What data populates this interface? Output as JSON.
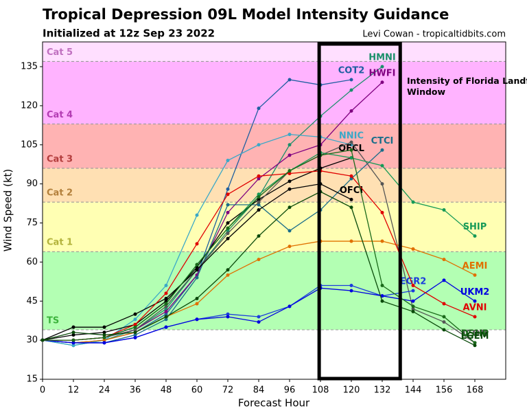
{
  "chart_data": {
    "type": "line",
    "title": "Tropical Depression 09L Model Intensity Guidance",
    "subtitle": "Initialized at 12z Sep 23 2022",
    "credit": "Levi Cowan - tropicaltidbits.com",
    "x_label": "Forecast Hour",
    "y_label": "Wind Speed (kt)",
    "annotation": "Intensity of Florida Landfall Window",
    "window": [
      107.5,
      139
    ],
    "xlim": [
      0,
      180
    ],
    "ylim": [
      15,
      144.5
    ],
    "xticks": [
      0,
      12,
      24,
      36,
      48,
      60,
      72,
      84,
      96,
      108,
      120,
      132,
      144,
      156,
      168
    ],
    "yticks": [
      15,
      30,
      45,
      60,
      75,
      90,
      105,
      120,
      135
    ],
    "bands": [
      {
        "name": "TS",
        "from": 34,
        "to": 64,
        "color": "#b3ffb3",
        "label_color": "#3cb33c"
      },
      {
        "name": "Cat 1",
        "from": 64,
        "to": 83,
        "color": "#ffffb3",
        "label_color": "#b3b33c"
      },
      {
        "name": "Cat 2",
        "from": 83,
        "to": 96,
        "color": "#ffe0b3",
        "label_color": "#b3803c"
      },
      {
        "name": "Cat 3",
        "from": 96,
        "to": 113,
        "color": "#ffb3b3",
        "label_color": "#b33c3c"
      },
      {
        "name": "Cat 4",
        "from": 113,
        "to": 137,
        "color": "#ffb3ff",
        "label_color": "#b33cb3"
      },
      {
        "name": "Cat 5",
        "from": 137,
        "to": 144.5,
        "color": "#ffdfff",
        "label_color": "#c070c0"
      }
    ],
    "x": [
      0,
      12,
      24,
      36,
      48,
      60,
      72,
      84,
      96,
      108,
      120,
      132,
      144,
      156,
      168
    ],
    "series": [
      {
        "name": "HMNI",
        "color": "#1a8f6a",
        "values": [
          30,
          28,
          30,
          34,
          42,
          57,
          72,
          85,
          105,
          116,
          126,
          135,
          null,
          null,
          null
        ]
      },
      {
        "name": "COT2",
        "color": "#1f5fa0",
        "values": [
          30,
          29,
          30,
          33,
          40,
          55,
          88,
          119,
          130,
          128,
          130,
          null,
          null,
          null,
          null
        ]
      },
      {
        "name": "HWFI",
        "color": "#800080",
        "values": [
          30,
          30,
          31,
          34,
          41,
          55,
          79,
          92,
          101,
          105,
          118,
          129,
          null,
          null,
          null
        ]
      },
      {
        "name": "NNIC",
        "color": "#3aa8c8",
        "values": [
          30,
          28,
          30,
          38,
          51,
          78,
          99,
          105,
          109,
          108,
          105,
          null,
          null,
          null,
          null
        ]
      },
      {
        "name": "OFCL",
        "color": "#000000",
        "values": [
          30,
          32,
          33,
          36,
          45,
          58,
          75,
          84,
          91,
          96,
          100,
          null,
          null,
          null,
          null
        ]
      },
      {
        "name": "CTCI",
        "color": "#1a6e8a",
        "values": [
          30,
          29,
          29,
          32,
          38,
          54,
          82,
          82,
          72,
          80,
          92,
          103,
          null,
          null,
          null
        ]
      },
      {
        "name": "ICON",
        "color": "#555555",
        "values": [
          30,
          30,
          31,
          34,
          43,
          57,
          71,
          83,
          95,
          101,
          106,
          90,
          42,
          37,
          29
        ]
      },
      {
        "name": "OFCI",
        "color": "#000000",
        "values": [
          30,
          35,
          35,
          40,
          46,
          57,
          69,
          80,
          88,
          90,
          84,
          null,
          null,
          null,
          null
        ]
      },
      {
        "name": "SHIP",
        "color": "#169a57",
        "values": [
          30,
          30,
          31,
          35,
          44,
          59,
          73,
          86,
          95,
          102,
          100,
          97,
          83,
          80,
          70
        ]
      },
      {
        "name": "AEMI",
        "color": "#e07000",
        "values": [
          30,
          29,
          30,
          33,
          39,
          44,
          55,
          61,
          66,
          68,
          68,
          68,
          65,
          61,
          55
        ]
      },
      {
        "name": "EGR2",
        "color": "#1a3cdc",
        "values": [
          30,
          29,
          29,
          31,
          35,
          38,
          40,
          39,
          43,
          51,
          51,
          47,
          49,
          null,
          null
        ]
      },
      {
        "name": "UKM2",
        "color": "#0000e0",
        "values": [
          30,
          29,
          29,
          31,
          35,
          38,
          39,
          37,
          43,
          50,
          49,
          47,
          45,
          53,
          45
        ]
      },
      {
        "name": "AVNI",
        "color": "#e00000",
        "values": [
          30,
          30,
          31,
          36,
          48,
          67,
          86,
          93,
          94,
          95,
          93,
          79,
          51,
          44,
          39
        ]
      },
      {
        "name": "DSHP",
        "color": "#1a6a1a",
        "values": [
          30,
          30,
          31,
          35,
          44,
          59,
          73,
          85,
          95,
          101,
          103,
          51,
          43,
          39,
          29
        ]
      },
      {
        "name": "LGEM",
        "color": "#0a4a0a",
        "values": [
          30,
          33,
          32,
          33,
          39,
          46,
          57,
          70,
          81,
          87,
          81,
          45,
          41,
          34,
          28
        ]
      }
    ]
  }
}
